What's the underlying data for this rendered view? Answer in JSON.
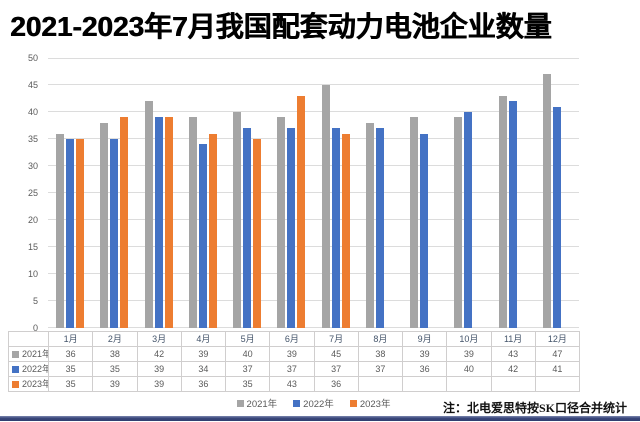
{
  "title": "2021-2023年7月我国配套动力电池企业数量",
  "footer": {
    "note": "注：北电爱思特按SK口径合并统计"
  },
  "colors": {
    "series_2021": "#a5a5a5",
    "series_2022": "#4472c4",
    "series_2023": "#ed7d31",
    "gridline": "#dcdcdc",
    "table_border": "#d0cece",
    "axis_text": "#595959",
    "bottom_band": "#3a477b"
  },
  "chart_data": {
    "type": "bar",
    "title": "2021-2023年7月我国配套动力电池企业数量",
    "categories": [
      "1月",
      "2月",
      "3月",
      "4月",
      "5月",
      "6月",
      "7月",
      "8月",
      "9月",
      "10月",
      "11月",
      "12月"
    ],
    "series": [
      {
        "name": "2021年",
        "color": "#a5a5a5",
        "values": [
          36,
          38,
          42,
          39,
          40,
          39,
          45,
          38,
          39,
          39,
          43,
          47
        ]
      },
      {
        "name": "2022年",
        "color": "#4472c4",
        "values": [
          35,
          35,
          39,
          34,
          37,
          37,
          37,
          37,
          36,
          40,
          42,
          41
        ]
      },
      {
        "name": "2023年",
        "color": "#ed7d31",
        "values": [
          35,
          39,
          39,
          36,
          35,
          43,
          36,
          null,
          null,
          null,
          null,
          null
        ]
      }
    ],
    "xlabel": "",
    "ylabel": "",
    "ylim": [
      0,
      50
    ],
    "ytick_step": 5,
    "grid": true,
    "legend_position": "bottom",
    "data_table": true
  }
}
